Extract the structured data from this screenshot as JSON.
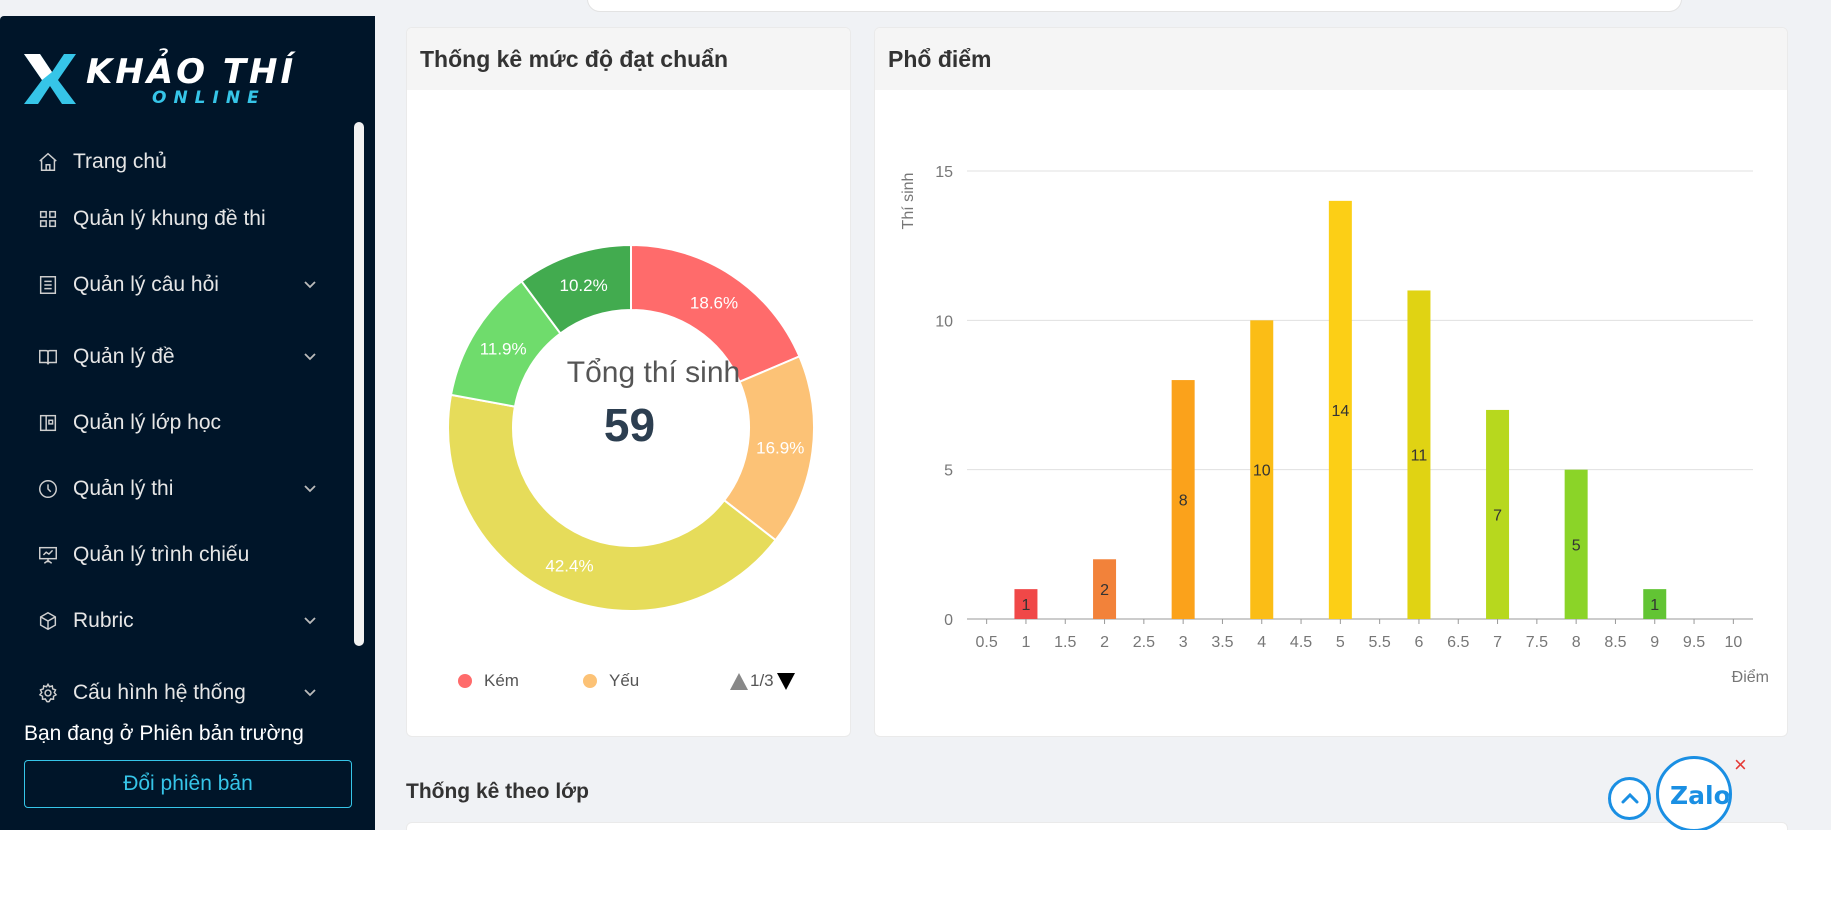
{
  "brand": {
    "title": "KHẢO THÍ",
    "subtitle": "ONLINE",
    "accent": "#36c5e8"
  },
  "sidebar": {
    "items": [
      {
        "label": "Trang chủ",
        "icon": "home-icon",
        "has_submenu": false
      },
      {
        "label": "Quản lý khung đề thi",
        "icon": "grid-icon",
        "has_submenu": false
      },
      {
        "label": "Quản lý câu hỏi",
        "icon": "list-icon",
        "has_submenu": true
      },
      {
        "label": "Quản lý đề",
        "icon": "book-icon",
        "has_submenu": true
      },
      {
        "label": "Quản lý lớp học",
        "icon": "classroom-icon",
        "has_submenu": false
      },
      {
        "label": "Quản lý thi",
        "icon": "clock-icon",
        "has_submenu": true
      },
      {
        "label": "Quản lý trình chiếu",
        "icon": "presentation-icon",
        "has_submenu": false
      },
      {
        "label": "Rubric",
        "icon": "cube-icon",
        "has_submenu": true
      },
      {
        "label": "Cấu hình hệ thống",
        "icon": "settings-icon",
        "has_submenu": true
      }
    ],
    "version_text": "Bạn đang ở Phiên bản trường",
    "version_button": "Đổi phiên bản"
  },
  "donut_card": {
    "title": "Thống kê mức độ đạt chuẩn",
    "center_title": "Tổng thí sinh",
    "center_value": "59",
    "legend": [
      {
        "label": "Kém",
        "color": "#ff6b6b"
      },
      {
        "label": "Yếu",
        "color": "#fcc276"
      }
    ],
    "legend_page": "1/3"
  },
  "hist_card": {
    "title": "Phổ điểm"
  },
  "section_title": "Thống kê theo lớp",
  "floating": {
    "zalo_label": "Zalo",
    "close_label": "×"
  },
  "chart_data": [
    {
      "type": "pie",
      "title": "Thống kê mức độ đạt chuẩn",
      "center_text": "Tổng thí sinh",
      "total": 59,
      "slices": [
        {
          "label": "Kém",
          "value": 18.6,
          "text": "18.6%",
          "color": "#ff6b6b"
        },
        {
          "label": "Yếu",
          "value": 16.9,
          "text": "16.9%",
          "color": "#fcc276"
        },
        {
          "label": "",
          "value": 42.4,
          "text": "42.4%",
          "color": "#e6dc5a"
        },
        {
          "label": "",
          "value": 11.9,
          "text": "11.9%",
          "color": "#6fdc6c"
        },
        {
          "label": "",
          "value": 10.2,
          "text": "10.2%",
          "color": "#42ab4f"
        }
      ],
      "legend_position": "bottom"
    },
    {
      "type": "bar",
      "title": "Phổ điểm",
      "xlabel": "Điểm",
      "ylabel": "Thí sinh",
      "x_ticks": [
        "0.5",
        "1",
        "1.5",
        "2",
        "2.5",
        "3",
        "3.5",
        "4",
        "4.5",
        "5",
        "5.5",
        "6",
        "6.5",
        "7",
        "7.5",
        "8",
        "8.5",
        "9",
        "9.5",
        "10"
      ],
      "y_ticks": [
        0,
        5,
        10,
        15
      ],
      "ylim": [
        0,
        15
      ],
      "grid": true,
      "bars": [
        {
          "x": 1,
          "value": 1,
          "color": "#f04848"
        },
        {
          "x": 2,
          "value": 2,
          "color": "#f2823a"
        },
        {
          "x": 3,
          "value": 8,
          "color": "#fba21b"
        },
        {
          "x": 4,
          "value": 10,
          "color": "#fbbd16"
        },
        {
          "x": 5,
          "value": 14,
          "color": "#fccf16"
        },
        {
          "x": 6,
          "value": 11,
          "color": "#e0d313"
        },
        {
          "x": 7,
          "value": 7,
          "color": "#b7d81e"
        },
        {
          "x": 8,
          "value": 5,
          "color": "#8bd428"
        },
        {
          "x": 9,
          "value": 1,
          "color": "#62c434"
        }
      ]
    }
  ]
}
